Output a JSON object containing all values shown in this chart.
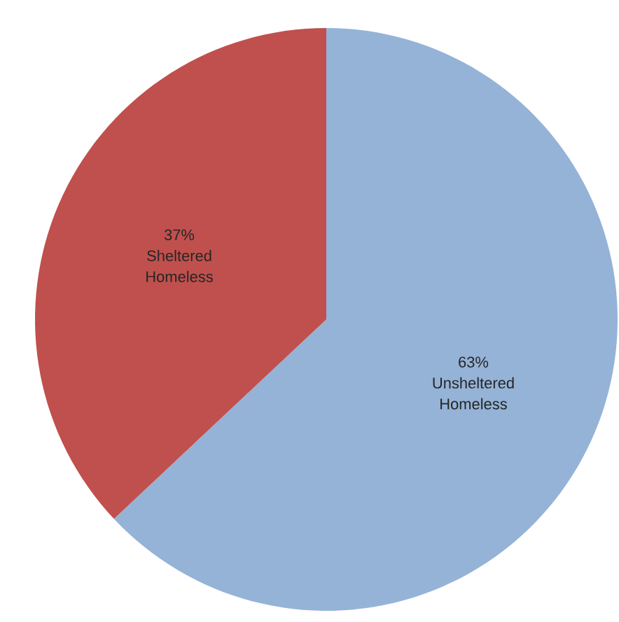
{
  "chart_data": {
    "type": "pie",
    "categories": [
      "Unsheltered Homeless",
      "Sheltered Homeless"
    ],
    "values": [
      63,
      37
    ],
    "value_labels": [
      "63%",
      "37%"
    ],
    "colors": [
      "#95b3d7",
      "#c0504d"
    ]
  }
}
